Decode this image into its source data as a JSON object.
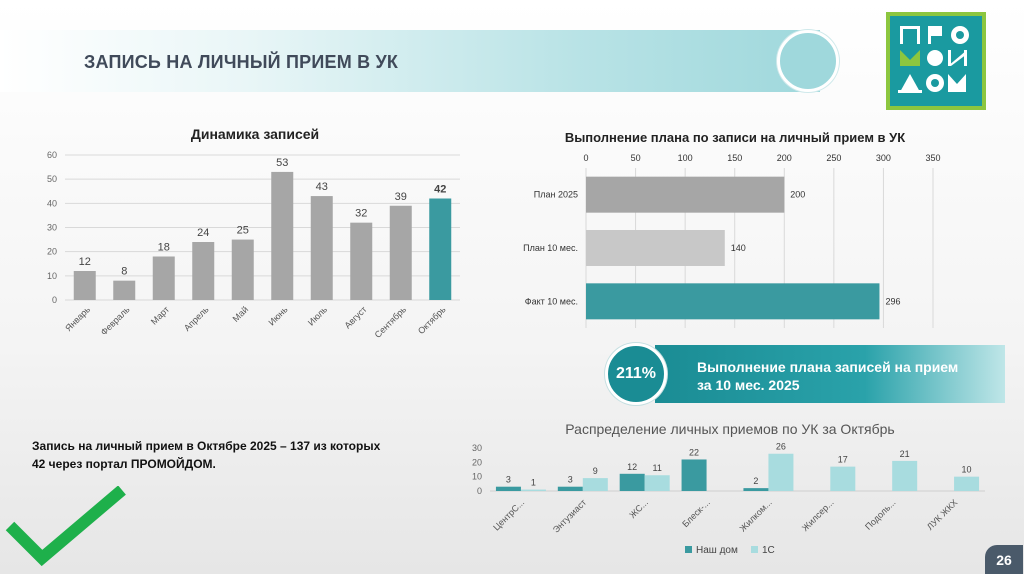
{
  "header": {
    "title": "ЗАПИСЬ НА ЛИЧНЫЙ ПРИЕМ В УК"
  },
  "logo": {
    "lines": [
      "ПРО",
      "МОЙ",
      "ДОМ"
    ]
  },
  "kpi": {
    "value": "211%",
    "line1": "Выполнение плана записей на прием",
    "line2": "за 10 мес. 2025"
  },
  "note": {
    "line1": "Запись на личный прием в Октябре 2025 – 137 из которых",
    "line2": "42 через портал ПРОМОЙДОМ."
  },
  "page_number": "26",
  "colors": {
    "gray_bar": "#a6a6a6",
    "light_gray_bar": "#c8c8c8",
    "teal": "#3a9aa0",
    "light_teal": "#a8dcdf",
    "accent_green": "#1eb04b"
  },
  "chart_data": [
    {
      "type": "bar",
      "title": "Динамика записей",
      "categories": [
        "Январь",
        "Февраль",
        "Март",
        "Апрель",
        "Май",
        "Июнь",
        "Июль",
        "Август",
        "Сентябрь",
        "Октябрь"
      ],
      "values": [
        12,
        8,
        18,
        24,
        25,
        53,
        43,
        32,
        39,
        42
      ],
      "data_labels": [
        "12",
        "8",
        "18",
        "24",
        "25",
        "53",
        "43",
        "32",
        "39",
        "42"
      ],
      "highlight_index": 9,
      "ylim": [
        0,
        60
      ],
      "yticks": [
        "0",
        "10",
        "20",
        "30",
        "40",
        "50",
        "60"
      ],
      "grid": true
    },
    {
      "type": "bar",
      "orientation": "horizontal",
      "title": "Выполнение плана по записи на личный прием в УК",
      "categories": [
        "План 2025",
        "План 10 мес.",
        "Факт 10 мес."
      ],
      "values": [
        200,
        140,
        296
      ],
      "data_labels": [
        "200",
        "140",
        "296"
      ],
      "xlim": [
        0,
        350
      ],
      "xticks": [
        "0",
        "50",
        "100",
        "150",
        "200",
        "250",
        "300",
        "350"
      ],
      "grid": true
    },
    {
      "type": "bar",
      "title": "Распределение личных приемов по УК за Октябрь",
      "categories": [
        "ЦентрС...",
        "Энтузиаст",
        "ЖС...",
        "Блеск-...",
        "Жилком...",
        "Жилсер...",
        "Подоль...",
        "ЛУК ЖКХ"
      ],
      "series": [
        {
          "name": "Наш дом",
          "values": [
            3,
            3,
            12,
            22,
            2,
            null,
            null,
            null
          ],
          "labels": [
            "3",
            "3",
            "12",
            "22",
            "2",
            "",
            "",
            ""
          ]
        },
        {
          "name": "1С",
          "values": [
            1,
            9,
            11,
            null,
            26,
            17,
            21,
            10
          ],
          "labels": [
            "1",
            "9",
            "11",
            "",
            "26",
            "17",
            "21",
            "10"
          ]
        }
      ],
      "ylim": [
        0,
        30
      ],
      "yticks": [
        "0",
        "10",
        "20",
        "30"
      ],
      "legend": [
        "Наш дом",
        "1С"
      ],
      "legend_position": "bottom"
    }
  ]
}
